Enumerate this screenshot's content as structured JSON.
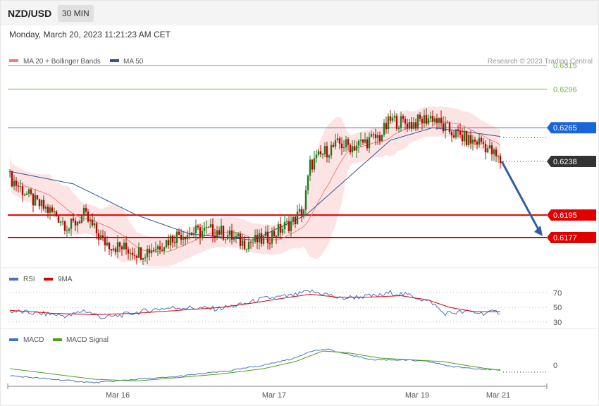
{
  "header": {
    "pair": "NZD/USD",
    "timeframe": "30 MIN"
  },
  "date_line": "Monday, March 20, 2023 11:21:23 AM CET",
  "credit": "Research © 2023 Trading Central",
  "colors": {
    "ma20": "#f08080",
    "ma50": "#2f5597",
    "bands": "#fde4e4",
    "up": "#1f7a1f",
    "down": "#c00000",
    "green_level": "#77b24c",
    "blue_level": "#4472c4",
    "red_level": "#e00000",
    "current": "#333333",
    "arrow": "#2e5f9e",
    "rsi": "#4472c4",
    "rsi9": "#e00000",
    "macd": "#4472c4",
    "macd_signal": "#4aa01e"
  },
  "chart_data": [
    {
      "type": "candlestick",
      "legend": [
        "MA 20 + Bollinger Bands",
        "MA 50"
      ],
      "legend_position": "top-left",
      "x_ticks": [
        "Mar 16",
        "Mar 17",
        "Mar 19",
        "Mar 21"
      ],
      "ylim": [
        0.6155,
        0.6325
      ],
      "levels": [
        {
          "value": 0.6315,
          "label": "0.6315",
          "kind": "resistance-green"
        },
        {
          "value": 0.6296,
          "label": "0.6296",
          "kind": "resistance-green"
        },
        {
          "value": 0.6265,
          "label": "0.6265",
          "kind": "resistance-blue"
        },
        {
          "value": 0.6238,
          "label": "0.6238",
          "kind": "current"
        },
        {
          "value": 0.6195,
          "label": "0.6195",
          "kind": "support-red"
        },
        {
          "value": 0.6177,
          "label": "0.6177",
          "kind": "support-red"
        }
      ],
      "path_anchors": [
        [
          0,
          0.6225
        ],
        [
          12,
          0.6205
        ],
        [
          22,
          0.6195
        ],
        [
          28,
          0.6185
        ],
        [
          35,
          0.6195
        ],
        [
          44,
          0.6174
        ],
        [
          50,
          0.617
        ],
        [
          62,
          0.6165
        ],
        [
          70,
          0.617
        ],
        [
          80,
          0.618
        ],
        [
          98,
          0.6183
        ],
        [
          110,
          0.6173
        ],
        [
          120,
          0.6175
        ],
        [
          134,
          0.619
        ],
        [
          139,
          0.62
        ],
        [
          142,
          0.6235
        ],
        [
          150,
          0.6247
        ],
        [
          156,
          0.6252
        ],
        [
          162,
          0.625
        ],
        [
          175,
          0.6258
        ],
        [
          180,
          0.6271
        ],
        [
          190,
          0.6268
        ],
        [
          200,
          0.6274
        ],
        [
          205,
          0.6265
        ],
        [
          218,
          0.6254
        ],
        [
          223,
          0.6254
        ],
        [
          232,
          0.6238
        ]
      ],
      "ma50_anchors": [
        [
          0,
          0.623
        ],
        [
          30,
          0.622
        ],
        [
          60,
          0.6195
        ],
        [
          85,
          0.618
        ],
        [
          115,
          0.6175
        ],
        [
          140,
          0.6195
        ],
        [
          160,
          0.6225
        ],
        [
          180,
          0.6255
        ],
        [
          200,
          0.6265
        ],
        [
          215,
          0.6262
        ],
        [
          232,
          0.6258
        ]
      ],
      "trend_arrow": {
        "from_value": 0.6238,
        "to_value": 0.6177
      }
    },
    {
      "type": "line",
      "legend": [
        "RSI",
        "9MA"
      ],
      "ylim": [
        25,
        80
      ],
      "y_ticks": [
        {
          "value": 70,
          "label": "70"
        },
        {
          "value": 50,
          "label": "50"
        },
        {
          "value": 30,
          "label": "30"
        }
      ],
      "rsi_anchors": [
        [
          0,
          45
        ],
        [
          12,
          42
        ],
        [
          22,
          40
        ],
        [
          28,
          38
        ],
        [
          35,
          46
        ],
        [
          44,
          36
        ],
        [
          50,
          38
        ],
        [
          62,
          44
        ],
        [
          70,
          48
        ],
        [
          80,
          50
        ],
        [
          98,
          48
        ],
        [
          110,
          54
        ],
        [
          120,
          62
        ],
        [
          134,
          66
        ],
        [
          139,
          70
        ],
        [
          142,
          72
        ],
        [
          150,
          68
        ],
        [
          156,
          62
        ],
        [
          162,
          64
        ],
        [
          175,
          66
        ],
        [
          180,
          70
        ],
        [
          190,
          66
        ],
        [
          200,
          56
        ],
        [
          205,
          42
        ],
        [
          218,
          44
        ],
        [
          223,
          42
        ],
        [
          232,
          44
        ]
      ],
      "ma9_anchors": [
        [
          0,
          46
        ],
        [
          20,
          42
        ],
        [
          40,
          40
        ],
        [
          60,
          42
        ],
        [
          80,
          46
        ],
        [
          100,
          50
        ],
        [
          115,
          56
        ],
        [
          128,
          62
        ],
        [
          142,
          68
        ],
        [
          155,
          64
        ],
        [
          170,
          64
        ],
        [
          185,
          66
        ],
        [
          198,
          60
        ],
        [
          208,
          50
        ],
        [
          220,
          44
        ],
        [
          232,
          44
        ]
      ]
    },
    {
      "type": "line",
      "legend": [
        "MACD",
        "MACD Signal"
      ],
      "ylim": [
        -0.0012,
        0.0012
      ],
      "y_ticks": [
        {
          "value": 0,
          "label": "0"
        }
      ],
      "macd_anchors": [
        [
          0,
          -0.0006
        ],
        [
          20,
          -0.0008
        ],
        [
          40,
          -0.001
        ],
        [
          60,
          -0.0008
        ],
        [
          75,
          -0.0007
        ],
        [
          90,
          -0.0005
        ],
        [
          105,
          -0.0003
        ],
        [
          120,
          0.0
        ],
        [
          135,
          0.0004
        ],
        [
          142,
          0.0008
        ],
        [
          150,
          0.0009
        ],
        [
          160,
          0.0006
        ],
        [
          172,
          0.0003
        ],
        [
          185,
          0.0003
        ],
        [
          198,
          0.0002
        ],
        [
          210,
          -0.0001
        ],
        [
          222,
          -0.0002
        ],
        [
          232,
          -0.0003
        ]
      ],
      "signal_anchors": [
        [
          0,
          -0.0002
        ],
        [
          20,
          -0.0005
        ],
        [
          40,
          -0.0008
        ],
        [
          60,
          -0.0009
        ],
        [
          80,
          -0.0007
        ],
        [
          100,
          -0.0005
        ],
        [
          120,
          -0.0002
        ],
        [
          135,
          0.0002
        ],
        [
          148,
          0.0008
        ],
        [
          160,
          0.0007
        ],
        [
          175,
          0.0004
        ],
        [
          190,
          0.0003
        ],
        [
          205,
          0.0002
        ],
        [
          220,
          -0.0001
        ],
        [
          232,
          -0.0003
        ]
      ]
    }
  ]
}
